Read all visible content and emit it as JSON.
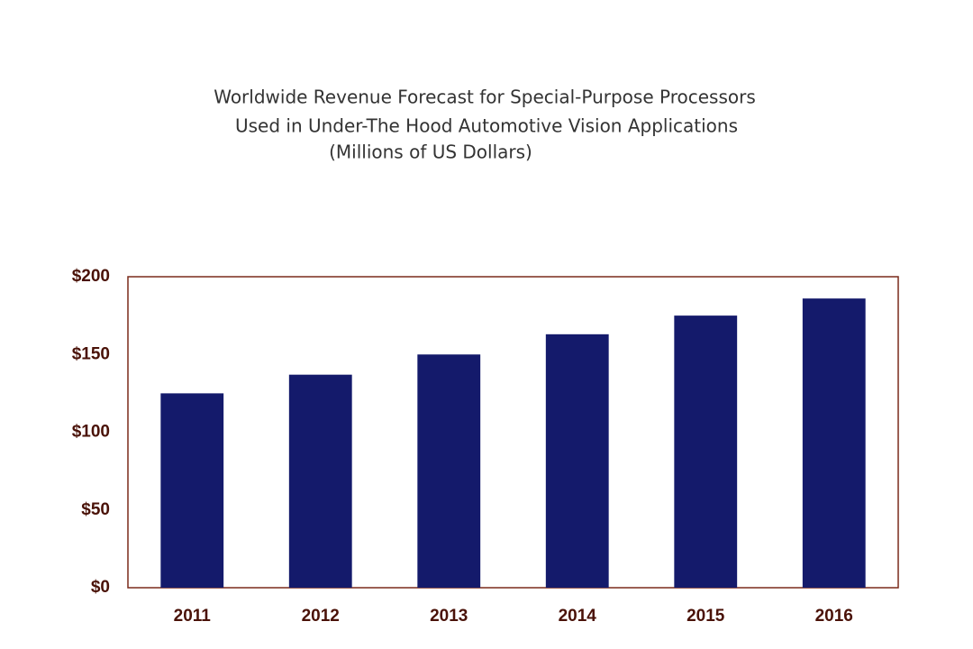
{
  "chart_data": {
    "type": "bar",
    "title": [
      "Worldwide Revenue Forecast for Special-Purpose Processors",
      "Used in Under-The Hood Automotive Vision Applications"
    ],
    "subtitle": "(Millions of US Dollars)",
    "categories": [
      "2011",
      "2012",
      "2013",
      "2014",
      "2015",
      "2016"
    ],
    "values": [
      125,
      137,
      150,
      163,
      175,
      186
    ],
    "color": "#141a6b",
    "ylim": [
      0,
      200
    ],
    "yticks": [
      {
        "value": 0,
        "label": "$0"
      },
      {
        "value": 50,
        "label": "$50"
      },
      {
        "value": 100,
        "label": "$100"
      },
      {
        "value": 150,
        "label": "$150"
      },
      {
        "value": 200,
        "label": "$200"
      }
    ],
    "grid": false
  }
}
